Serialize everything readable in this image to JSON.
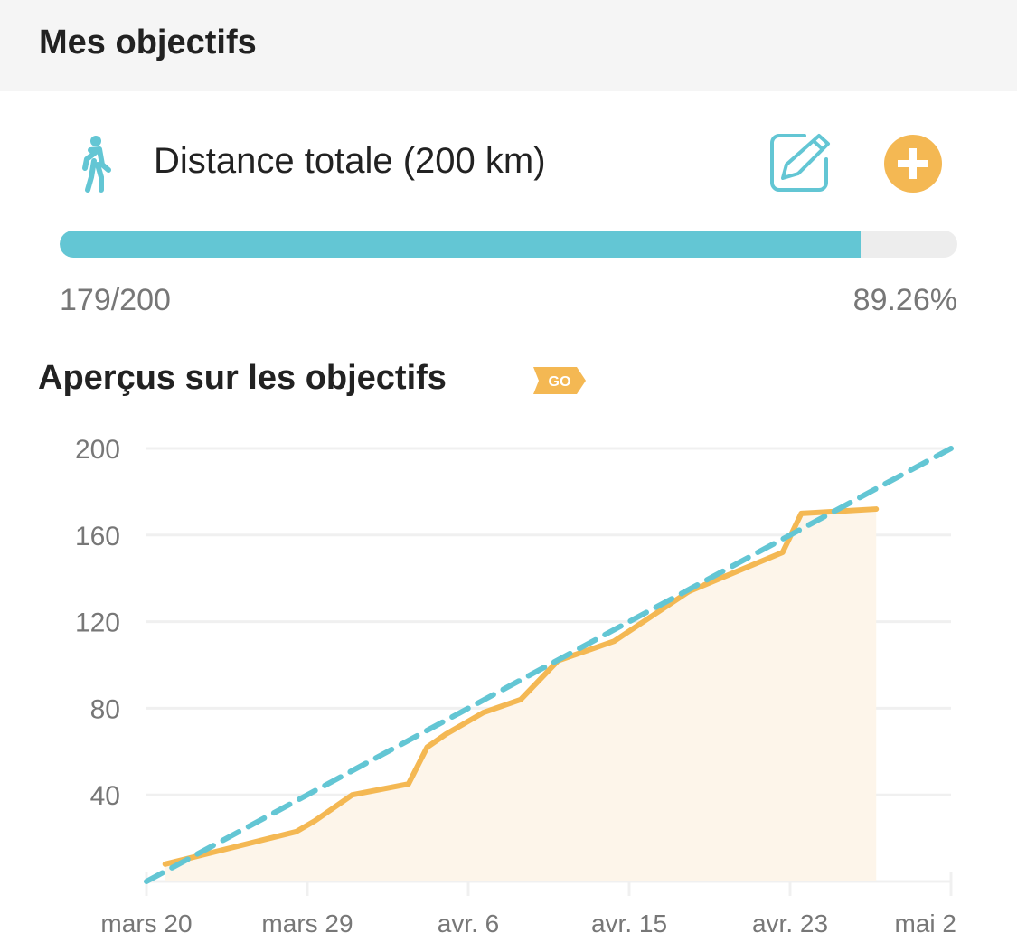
{
  "header": {
    "title": "Mes objectifs"
  },
  "goal": {
    "icon": "walking-person-icon",
    "title": "Distance totale (200 km)",
    "edit_icon": "edit-icon",
    "add_icon": "plus-circle-icon",
    "current": 179,
    "target": 200,
    "count_label": "179/200",
    "percent_label": "89.26%",
    "progress_fraction": 0.8926
  },
  "insights": {
    "title": "Aperçus sur les objectifs",
    "badge": "GO"
  },
  "colors": {
    "accent": "#63c6d4",
    "orange": "#f4b853",
    "area": "#fdf5ea",
    "grid": "#f0f0f0"
  },
  "chart_data": {
    "type": "line",
    "ylim": [
      0,
      200
    ],
    "y_ticks": [
      40,
      80,
      120,
      160,
      200
    ],
    "x_ticks": [
      "mars 20",
      "mars 29",
      "avr. 6",
      "avr. 15",
      "avr. 23",
      "mai 2"
    ],
    "x_range": [
      "03-20",
      "05-02"
    ],
    "grid": true,
    "series": [
      {
        "style": "solid-area",
        "color": "#f4b853",
        "points": [
          [
            "03-21",
            8
          ],
          [
            "03-28",
            23
          ],
          [
            "03-29",
            28
          ],
          [
            "03-31",
            40
          ],
          [
            "04-03",
            45
          ],
          [
            "04-04",
            62
          ],
          [
            "04-05",
            68
          ],
          [
            "04-07",
            78
          ],
          [
            "04-09",
            84
          ],
          [
            "04-11",
            102
          ],
          [
            "04-14",
            111
          ],
          [
            "04-18",
            134
          ],
          [
            "04-23",
            152
          ],
          [
            "04-24",
            170
          ],
          [
            "04-28",
            172
          ]
        ]
      },
      {
        "style": "dashed",
        "color": "#63c6d4",
        "points": [
          [
            "03-20",
            0
          ],
          [
            "05-02",
            200
          ]
        ]
      }
    ]
  }
}
